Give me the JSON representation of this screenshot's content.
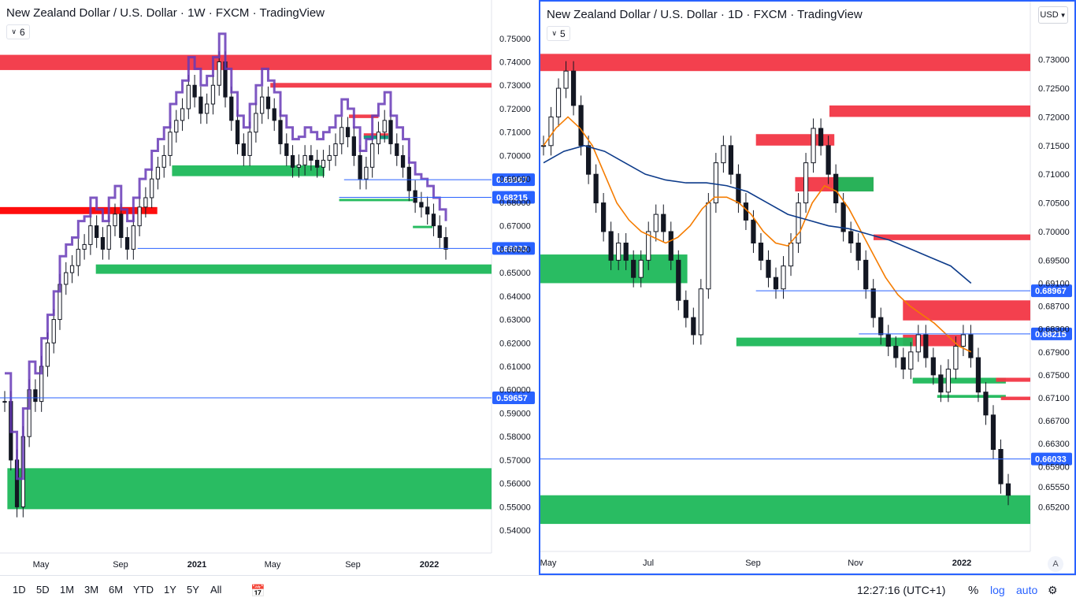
{
  "chart_data": [
    {
      "type": "candlestick",
      "title": "New Zealand Dollar / U.S. Dollar · 1W · FXCM · TradingView",
      "indicator_count": "6",
      "y_ticks": [
        "0.75000",
        "0.74000",
        "0.73000",
        "0.72000",
        "0.71000",
        "0.70000",
        "0.69000",
        "0.68000",
        "0.67000",
        "0.66000",
        "0.65000",
        "0.64000",
        "0.63000",
        "0.62000",
        "0.61000",
        "0.60000",
        "0.59000",
        "0.58000",
        "0.57000",
        "0.56000",
        "0.55000",
        "0.54000"
      ],
      "ylim": [
        0.535,
        0.758
      ],
      "x_ticks": [
        "May",
        "Sep",
        "2021",
        "May",
        "Sep",
        "2022"
      ],
      "price_lines": [
        {
          "label": "0.68967",
          "value": 0.68967,
          "x_from": 0.7
        },
        {
          "label": "0.68215",
          "value": 0.68215,
          "x_from": 0.69
        },
        {
          "label": "0.66033",
          "value": 0.66033,
          "x_from": 0.28
        },
        {
          "label": "0.59657",
          "value": 0.59657,
          "x_from": 0.0
        }
      ],
      "zones": [
        {
          "color": "#f23645",
          "y_top": 0.743,
          "y_bottom": 0.7365,
          "x_from": 0.0,
          "x_to": 1.0
        },
        {
          "color": "#f23645",
          "y_top": 0.731,
          "y_bottom": 0.729,
          "x_from": 0.55,
          "x_to": 1.0
        },
        {
          "color": "#ff0000",
          "y_top": 0.678,
          "y_bottom": 0.675,
          "x_from": 0.0,
          "x_to": 0.32
        },
        {
          "color": "#f23645",
          "y_top": 0.7175,
          "y_bottom": 0.716,
          "x_from": 0.71,
          "x_to": 0.77
        },
        {
          "color": "#f23645",
          "y_top": 0.7095,
          "y_bottom": 0.708,
          "x_from": 0.74,
          "x_to": 0.79
        },
        {
          "color": "#089981",
          "y_top": 0.7085,
          "y_bottom": 0.707,
          "x_from": 0.74,
          "x_to": 0.79
        },
        {
          "color": "#1eb85a",
          "y_top": 0.6958,
          "y_bottom": 0.6912,
          "x_from": 0.35,
          "x_to": 0.66
        },
        {
          "color": "#1eb85a",
          "y_top": 0.6815,
          "y_bottom": 0.6805,
          "x_from": 0.69,
          "x_to": 0.84
        },
        {
          "color": "#1eb85a",
          "y_top": 0.67,
          "y_bottom": 0.669,
          "x_from": 0.84,
          "x_to": 0.88
        },
        {
          "color": "#1eb85a",
          "y_top": 0.6535,
          "y_bottom": 0.6495,
          "x_from": 0.195,
          "x_to": 1.0
        },
        {
          "color": "#1eb85a",
          "y_top": 0.5665,
          "y_bottom": 0.549,
          "x_from": 0.015,
          "x_to": 1.0
        }
      ],
      "close": [
        0.595,
        0.57,
        0.55,
        0.58,
        0.6,
        0.595,
        0.61,
        0.62,
        0.63,
        0.645,
        0.65,
        0.653,
        0.66,
        0.662,
        0.67,
        0.665,
        0.66,
        0.67,
        0.675,
        0.665,
        0.66,
        0.67,
        0.678,
        0.682,
        0.69,
        0.695,
        0.7,
        0.71,
        0.715,
        0.72,
        0.73,
        0.725,
        0.718,
        0.722,
        0.73,
        0.74,
        0.725,
        0.715,
        0.705,
        0.7,
        0.71,
        0.718,
        0.725,
        0.72,
        0.715,
        0.705,
        0.7,
        0.695,
        0.696,
        0.7,
        0.698,
        0.695,
        0.698,
        0.7,
        0.705,
        0.712,
        0.708,
        0.7,
        0.69,
        0.695,
        0.705,
        0.71,
        0.715,
        0.705,
        0.7,
        0.695,
        0.685,
        0.68,
        0.678,
        0.675,
        0.67,
        0.665,
        0.66
      ]
    },
    {
      "type": "candlestick",
      "title": "New Zealand Dollar / U.S. Dollar · 1D · FXCM · TradingView",
      "indicator_count": "5",
      "currency": "USD",
      "y_ticks": [
        "0.73000",
        "0.72500",
        "0.72000",
        "0.71500",
        "0.71000",
        "0.70500",
        "0.70000",
        "0.69500",
        "0.69100",
        "0.68700",
        "0.68300",
        "0.67900",
        "0.67500",
        "0.67100",
        "0.66700",
        "0.66300",
        "0.65900",
        "0.65550",
        "0.65200"
      ],
      "ylim": [
        0.6475,
        0.7338
      ],
      "x_ticks": [
        "May",
        "Jul",
        "Sep",
        "Nov",
        "2022"
      ],
      "price_lines": [
        {
          "label": "0.68967",
          "value": 0.68967,
          "x_from": 0.44
        },
        {
          "label": "0.68215",
          "value": 0.68215,
          "x_from": 0.65
        },
        {
          "label": "0.66033",
          "value": 0.66033,
          "x_from": 0.0
        }
      ],
      "zones": [
        {
          "color": "#f23645",
          "y_top": 0.731,
          "y_bottom": 0.728,
          "x_from": 0.0,
          "x_to": 1.0
        },
        {
          "color": "#f23645",
          "y_top": 0.722,
          "y_bottom": 0.72,
          "x_from": 0.59,
          "x_to": 1.0
        },
        {
          "color": "#f23645",
          "y_top": 0.717,
          "y_bottom": 0.715,
          "x_from": 0.44,
          "x_to": 0.6
        },
        {
          "color": "#f23645",
          "y_top": 0.7095,
          "y_bottom": 0.707,
          "x_from": 0.52,
          "x_to": 0.68
        },
        {
          "color": "#1eb85a",
          "y_top": 0.7095,
          "y_bottom": 0.707,
          "x_from": 0.6,
          "x_to": 0.68
        },
        {
          "color": "#f23645",
          "y_top": 0.6995,
          "y_bottom": 0.6985,
          "x_from": 0.68,
          "x_to": 1.0
        },
        {
          "color": "#f23645",
          "y_top": 0.688,
          "y_bottom": 0.6845,
          "x_from": 0.74,
          "x_to": 1.0
        },
        {
          "color": "#f23645",
          "y_top": 0.682,
          "y_bottom": 0.68,
          "x_from": 0.74,
          "x_to": 0.86
        },
        {
          "color": "#1eb85a",
          "y_top": 0.6815,
          "y_bottom": 0.68,
          "x_from": 0.4,
          "x_to": 0.76
        },
        {
          "color": "#1eb85a",
          "y_top": 0.6745,
          "y_bottom": 0.6735,
          "x_from": 0.76,
          "x_to": 0.95
        },
        {
          "color": "#f23645",
          "y_top": 0.6745,
          "y_bottom": 0.6738,
          "x_from": 0.93,
          "x_to": 1.0
        },
        {
          "color": "#1eb85a",
          "y_top": 0.6715,
          "y_bottom": 0.671,
          "x_from": 0.81,
          "x_to": 0.95
        },
        {
          "color": "#f23645",
          "y_top": 0.6712,
          "y_bottom": 0.6706,
          "x_from": 0.94,
          "x_to": 1.0
        },
        {
          "color": "#1eb85a",
          "y_top": 0.696,
          "y_bottom": 0.691,
          "x_from": 0.0,
          "x_to": 0.3
        },
        {
          "color": "#1eb85a",
          "y_top": 0.654,
          "y_bottom": 0.649,
          "x_from": 0.0,
          "x_to": 1.0
        }
      ],
      "close": [
        0.715,
        0.72,
        0.725,
        0.728,
        0.722,
        0.715,
        0.71,
        0.705,
        0.7,
        0.695,
        0.698,
        0.695,
        0.692,
        0.695,
        0.7,
        0.703,
        0.7,
        0.695,
        0.688,
        0.685,
        0.682,
        0.69,
        0.705,
        0.712,
        0.715,
        0.71,
        0.705,
        0.702,
        0.698,
        0.695,
        0.692,
        0.69,
        0.694,
        0.698,
        0.705,
        0.712,
        0.718,
        0.715,
        0.71,
        0.705,
        0.7,
        0.698,
        0.695,
        0.69,
        0.685,
        0.682,
        0.68,
        0.678,
        0.676,
        0.679,
        0.682,
        0.678,
        0.675,
        0.672,
        0.676,
        0.68,
        0.682,
        0.678,
        0.672,
        0.668,
        0.662,
        0.656,
        0.654
      ],
      "ma_orange": [
        0.715,
        0.718,
        0.72,
        0.718,
        0.715,
        0.71,
        0.705,
        0.702,
        0.7,
        0.699,
        0.698,
        0.699,
        0.701,
        0.704,
        0.706,
        0.706,
        0.705,
        0.703,
        0.7,
        0.698,
        0.6975,
        0.7,
        0.705,
        0.708,
        0.707,
        0.704,
        0.7,
        0.696,
        0.692,
        0.689,
        0.687,
        0.6855,
        0.684,
        0.682,
        0.68,
        0.679
      ],
      "ma_navy": [
        0.712,
        0.714,
        0.715,
        0.714,
        0.712,
        0.71,
        0.709,
        0.7085,
        0.7085,
        0.708,
        0.707,
        0.705,
        0.703,
        0.702,
        0.701,
        0.7005,
        0.6995,
        0.6985,
        0.697,
        0.6955,
        0.694,
        0.691
      ]
    }
  ],
  "bottom_bar": {
    "ranges": [
      "1D",
      "5D",
      "1M",
      "3M",
      "6M",
      "YTD",
      "1Y",
      "5Y",
      "All"
    ],
    "clock": "12:27:16 (UTC+1)",
    "percent": "%",
    "log": "log",
    "auto": "auto"
  },
  "auto_scale_letter": "A"
}
